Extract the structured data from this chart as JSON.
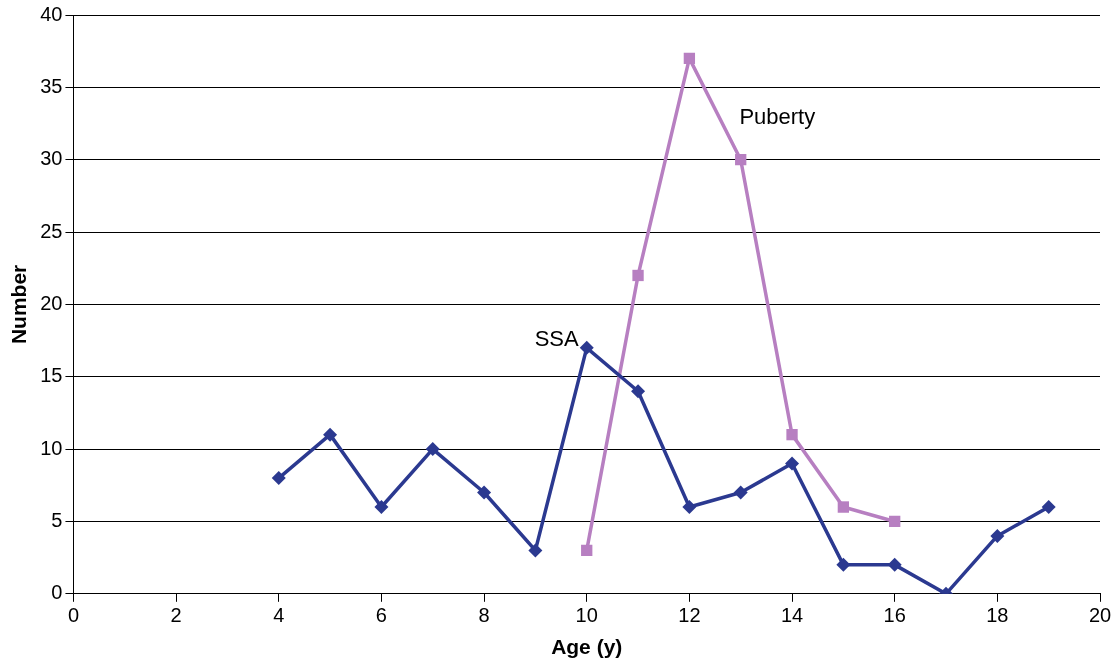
{
  "chart_data": {
    "type": "line",
    "xlabel": "Age (y)",
    "ylabel": "Number",
    "xlim": [
      0,
      20
    ],
    "xticks": [
      0,
      2,
      4,
      6,
      8,
      10,
      12,
      14,
      16,
      18,
      20
    ],
    "ylim": [
      0,
      40
    ],
    "yticks": [
      0,
      5,
      10,
      15,
      20,
      25,
      30,
      35,
      40
    ],
    "grid": "y",
    "legend": false,
    "series": [
      {
        "name": "SSA",
        "color": "#2b3990",
        "marker": "diamond",
        "x": [
          4,
          5,
          6,
          7,
          8,
          9,
          10,
          11,
          12,
          13,
          14,
          15,
          16,
          17,
          18,
          19
        ],
        "values": [
          8,
          11,
          6,
          10,
          7,
          3,
          17,
          14,
          6,
          7,
          9,
          2,
          2,
          0,
          4,
          6
        ]
      },
      {
        "name": "Puberty",
        "color": "#b77fc1",
        "marker": "square",
        "x": [
          10,
          11,
          12,
          13,
          14,
          15,
          16
        ],
        "values": [
          3,
          22,
          37,
          30,
          11,
          6,
          5
        ]
      }
    ]
  }
}
